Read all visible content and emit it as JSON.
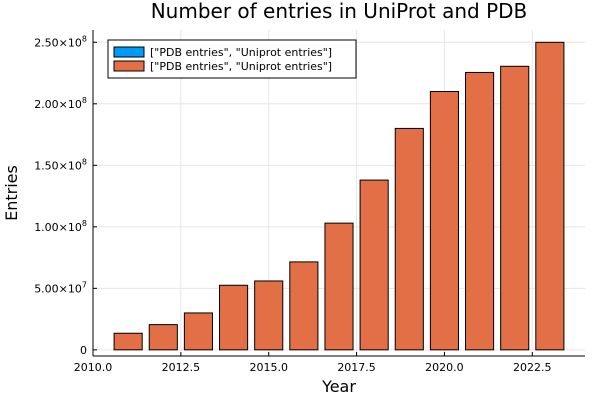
{
  "chart_data": {
    "type": "bar",
    "title": "Number of entries in UniProt and PDB",
    "xlabel": "Year",
    "ylabel": "Entries",
    "x": [
      2011,
      2012,
      2013,
      2014,
      2015,
      2016,
      2017,
      2018,
      2019,
      2020,
      2021,
      2022,
      2023
    ],
    "series": [
      {
        "name": "[\"PDB entries\", \"Uniprot entries\"]",
        "color": "#009af9",
        "values": [
          0,
          0,
          0,
          0,
          0,
          0,
          0,
          0,
          0,
          0,
          0,
          0,
          0
        ]
      },
      {
        "name": "[\"PDB entries\", \"Uniprot entries\"]",
        "color": "#e26f46",
        "values": [
          13500000,
          20500000,
          30000000,
          52500000,
          56000000,
          71500000,
          103000000,
          138000000,
          180000000,
          210000000,
          225500000,
          230500000,
          250000000
        ]
      }
    ],
    "xlim": [
      2010,
      2024
    ],
    "ylim": [
      -5000000,
      260000000
    ],
    "xticks": [
      2010,
      2012.5,
      2015,
      2017.5,
      2020,
      2022.5
    ],
    "xtick_labels": [
      "2010.0",
      "2012.5",
      "2015.0",
      "2017.5",
      "2020.0",
      "2022.5"
    ],
    "yticks": [
      0,
      50000000,
      100000000,
      150000000,
      200000000,
      250000000
    ],
    "ytick_labels": [
      {
        "mantissa": "0",
        "exp": ""
      },
      {
        "mantissa": "5.00×10",
        "exp": "7"
      },
      {
        "mantissa": "1.00×10",
        "exp": "8"
      },
      {
        "mantissa": "1.50×10",
        "exp": "8"
      },
      {
        "mantissa": "2.00×10",
        "exp": "8"
      },
      {
        "mantissa": "2.50×10",
        "exp": "8"
      }
    ],
    "grid": true,
    "legend_position": "top-left"
  }
}
